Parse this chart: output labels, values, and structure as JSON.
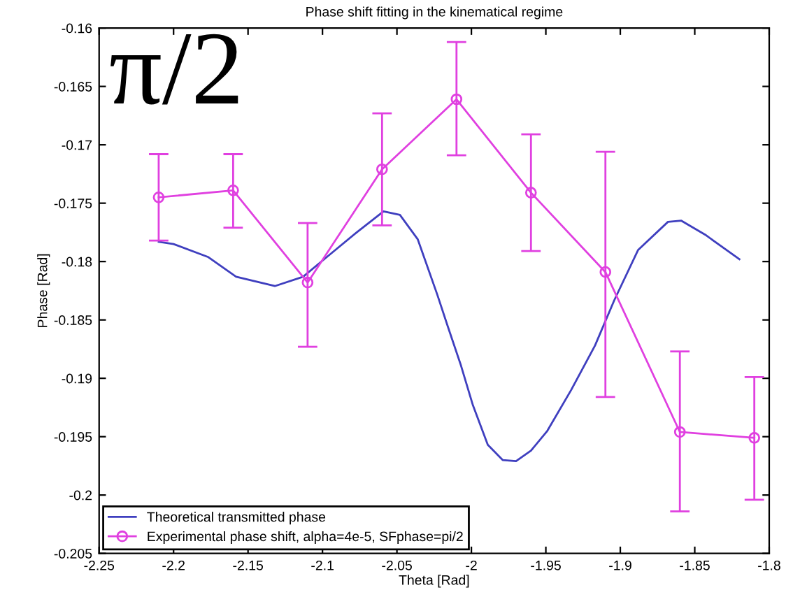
{
  "chart_data": {
    "type": "line",
    "title": "Phase shift fitting in the kinematical regime",
    "xlabel": "Theta [Rad]",
    "ylabel": "Phase [Rad]",
    "annotations": [
      "π/2"
    ],
    "xlim": [
      -2.25,
      -1.8
    ],
    "xticks": [
      -2.25,
      -2.2,
      -2.15,
      -2.1,
      -2.05,
      -2,
      -1.95,
      -1.9,
      -1.85,
      -1.8
    ],
    "ylim": [
      -0.205,
      -0.16
    ],
    "yticks": [
      -0.205,
      -0.2,
      -0.195,
      -0.19,
      -0.185,
      -0.18,
      -0.175,
      -0.17,
      -0.165,
      -0.16
    ],
    "grid": false,
    "legend": "bottom left",
    "series": [
      {
        "name": "Theoretical transmitted phase",
        "color": "#3f3fbf",
        "marker": "none",
        "x": [
          -2.21,
          -2.2,
          -2.177,
          -2.158,
          -2.132,
          -2.113,
          -2.097,
          -2.077,
          -2.059,
          -2.048,
          -2.036,
          -2.023,
          -2.016,
          -2.007,
          -1.999,
          -1.989,
          -1.979,
          -1.97,
          -1.96,
          -1.949,
          -1.933,
          -1.917,
          -1.904,
          -1.888,
          -1.868,
          -1.859,
          -1.843,
          -1.82
        ],
        "values": [
          -0.1783,
          -0.1785,
          -0.1796,
          -0.1813,
          -0.1821,
          -0.1813,
          -0.1796,
          -0.1775,
          -0.1757,
          -0.176,
          -0.1781,
          -0.1828,
          -0.1855,
          -0.1889,
          -0.1923,
          -0.1957,
          -0.197,
          -0.1971,
          -0.1962,
          -0.1945,
          -0.191,
          -0.1872,
          -0.1833,
          -0.179,
          -0.1766,
          -0.1765,
          -0.1777,
          -0.1798
        ]
      },
      {
        "name": "Experimental phase shift, alpha=4e-5, SFphase=pi/2",
        "color": "#e040e0",
        "marker": "circle",
        "x": [
          -2.21,
          -2.16,
          -2.11,
          -2.06,
          -2.01,
          -1.96,
          -1.91,
          -1.86,
          -1.81
        ],
        "values": [
          -0.1745,
          -0.1739,
          -0.1818,
          -0.1721,
          -0.1661,
          -0.1741,
          -0.1809,
          -0.1946,
          -0.1951
        ],
        "errors": [
          [
            -0.1782,
            -0.1708
          ],
          [
            -0.1771,
            -0.1708
          ],
          [
            -0.1873,
            -0.1767
          ],
          [
            -0.1769,
            -0.1673
          ],
          [
            -0.1709,
            -0.1612
          ],
          [
            -0.1791,
            -0.1691
          ],
          [
            -0.1916,
            -0.1706
          ],
          [
            -0.2014,
            -0.1877
          ],
          [
            -0.2004,
            -0.1899
          ]
        ]
      }
    ]
  }
}
